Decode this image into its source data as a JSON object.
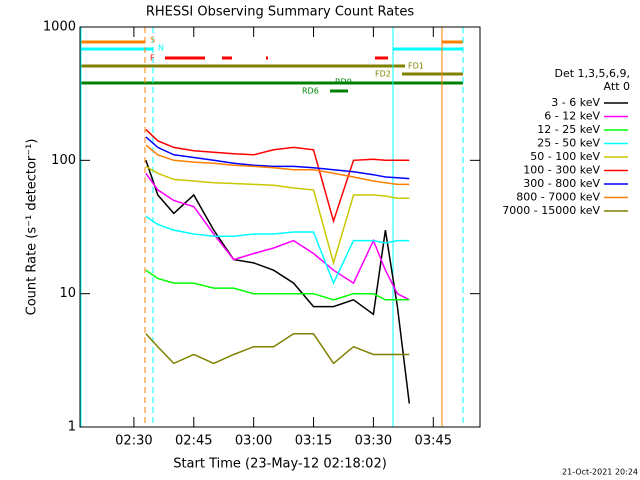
{
  "chart_data": {
    "type": "line",
    "title": "RHESSI Observing Summary Count Rates",
    "xlabel": "Start Time (23-May-12 02:18:02)",
    "ylabel": "Count Rate (s⁻¹ detector⁻¹)",
    "footer": "21-Oct-2021 20:24",
    "legend_title": [
      "Det 1,3,5,6,9,",
      "Att 0"
    ],
    "annotations": [
      "S",
      "N",
      "F",
      "FD1",
      "FD2",
      "RD9",
      "RD6"
    ],
    "log_scale": true,
    "xlim": [
      136.5,
      236.7
    ],
    "ylim": [
      1,
      1000
    ],
    "xticks": [
      {
        "value": 150,
        "label": "02:30"
      },
      {
        "value": 165,
        "label": "02:45"
      },
      {
        "value": 180,
        "label": "03:00"
      },
      {
        "value": 195,
        "label": "03:15"
      },
      {
        "value": 210,
        "label": "03:30"
      },
      {
        "value": 225,
        "label": "03:45"
      }
    ],
    "yticks": [
      1,
      10,
      100,
      1000
    ],
    "x": [
      153,
      156,
      160,
      165,
      170,
      175,
      180,
      185,
      190,
      195,
      200,
      205,
      210,
      213,
      216,
      219
    ],
    "series": [
      {
        "name": "3 - 6 keV",
        "color": "#000000",
        "values": [
          100,
          55,
          40,
          55,
          30,
          18,
          17,
          15,
          12,
          8,
          8,
          9,
          7,
          30,
          8,
          1.5
        ]
      },
      {
        "name": "6 - 12 keV",
        "color": "#ff00ff",
        "values": [
          80,
          60,
          50,
          45,
          28,
          18,
          20,
          22,
          25,
          20,
          15,
          12,
          25,
          15,
          10,
          9
        ]
      },
      {
        "name": "12 - 25 keV",
        "color": "#00ff00",
        "values": [
          15,
          13,
          12,
          12,
          11,
          11,
          10,
          10,
          10,
          10,
          9,
          10,
          10,
          9,
          9,
          9
        ]
      },
      {
        "name": "25 - 50 keV",
        "color": "#00ffff",
        "values": [
          38,
          33,
          30,
          28,
          27,
          27,
          28,
          28,
          29,
          29,
          12,
          25,
          25,
          24,
          25,
          25
        ]
      },
      {
        "name": "50 - 100 keV",
        "color": "#c8c800",
        "values": [
          90,
          80,
          72,
          70,
          68,
          67,
          66,
          65,
          62,
          60,
          17,
          55,
          55,
          54,
          52,
          52
        ]
      },
      {
        "name": "100 - 300 keV",
        "color": "#ff0000",
        "values": [
          170,
          140,
          125,
          118,
          115,
          112,
          110,
          120,
          125,
          120,
          35,
          100,
          102,
          100,
          100,
          100
        ]
      },
      {
        "name": "300 - 800 keV",
        "color": "#0000ff",
        "values": [
          150,
          125,
          110,
          105,
          100,
          95,
          92,
          90,
          90,
          88,
          85,
          82,
          78,
          75,
          74,
          73
        ]
      },
      {
        "name": "800 - 7000 keV",
        "color": "#ff8000",
        "values": [
          130,
          110,
          100,
          97,
          95,
          92,
          90,
          88,
          85,
          85,
          80,
          75,
          70,
          68,
          66,
          66
        ]
      },
      {
        "name": "7000 - 15000 keV",
        "color": "#808000",
        "values": [
          5,
          4,
          3,
          3.5,
          3,
          3.5,
          4,
          4,
          5,
          5,
          3,
          4,
          3.5,
          3.5,
          3.5,
          3.5
        ]
      }
    ]
  }
}
